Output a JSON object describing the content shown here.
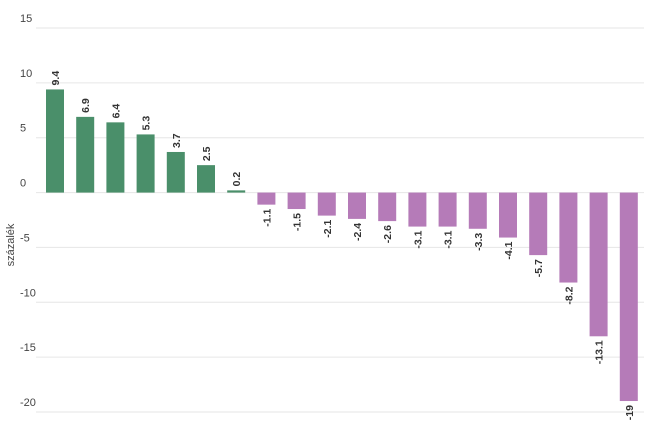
{
  "chart_data": {
    "type": "bar",
    "title": "",
    "xlabel": "",
    "ylabel": "százalék",
    "ylim": [
      -20,
      15
    ],
    "yticks": [
      15,
      10,
      5,
      0,
      -5,
      -10,
      -15,
      -20
    ],
    "grid": true,
    "legend": "none",
    "values": [
      9.4,
      6.9,
      6.4,
      5.3,
      3.7,
      2.5,
      0.2,
      -1.1,
      -1.5,
      -2.1,
      -2.4,
      -2.6,
      -3.1,
      -3.1,
      -3.3,
      -4.1,
      -5.7,
      -8.2,
      -13.1,
      -19
    ],
    "labels": [
      "9.4",
      "6.9",
      "6.4",
      "5.3",
      "3.7",
      "2.5",
      "0.2",
      "-1.1",
      "-1.5",
      "-2.1",
      "-2.4",
      "-2.6",
      "-3.1",
      "-3.1",
      "-3.3",
      "-4.1",
      "-5.7",
      "-8.2",
      "-13.1",
      "-19"
    ],
    "colors": {
      "positive": "#4a8f6a",
      "negative": "#b57bb8",
      "grid": "#e6e6e6",
      "text": "#444444"
    }
  }
}
